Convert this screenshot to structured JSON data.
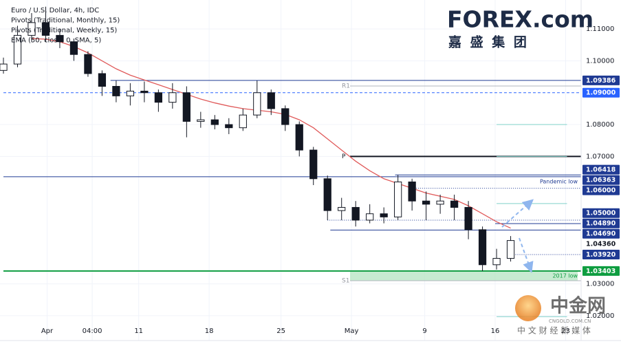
{
  "chart_data": {
    "type": "candlestick",
    "legend_lines": [
      "Euro / U.S. Dollar, 4h, IDC",
      "Pivots (Traditional, Monthly, 15)",
      "Pivots (Traditional, Weekly, 15)",
      "EMA (50, close, 0, SMA, 5)"
    ],
    "up_color": "#ffffff",
    "down_color": "#131722",
    "open": [
      1.097,
      1.099,
      1.108,
      1.112,
      1.108,
      1.106,
      1.102,
      1.096,
      1.092,
      1.089,
      1.0905,
      1.09,
      1.087,
      1.09,
      1.081,
      1.0815,
      1.08,
      1.079,
      1.083,
      1.09,
      1.085,
      1.08,
      1.072,
      1.063,
      1.053,
      1.054,
      1.05,
      1.052,
      1.051,
      1.062,
      1.056,
      1.055,
      1.056,
      1.054,
      1.047,
      1.036,
      1.038
    ],
    "high": [
      1.101,
      1.111,
      1.115,
      1.117,
      1.11,
      1.107,
      1.103,
      1.097,
      1.0938,
      1.093,
      1.0935,
      1.091,
      1.093,
      1.092,
      1.084,
      1.083,
      1.082,
      1.085,
      1.0938,
      1.091,
      1.086,
      1.081,
      1.073,
      1.064,
      1.057,
      1.056,
      1.055,
      1.054,
      1.0642,
      1.063,
      1.059,
      1.058,
      1.058,
      1.056,
      1.048,
      1.041,
      1.045
    ],
    "low": [
      1.096,
      1.098,
      1.106,
      1.106,
      1.104,
      1.1,
      1.095,
      1.089,
      1.087,
      1.086,
      1.087,
      1.084,
      1.085,
      1.076,
      1.079,
      1.0785,
      1.077,
      1.078,
      1.082,
      1.083,
      1.078,
      1.07,
      1.061,
      1.05,
      1.05,
      1.048,
      1.049,
      1.049,
      1.05,
      1.053,
      1.05,
      1.052,
      1.05,
      1.044,
      1.034,
      1.0345,
      1.037
    ],
    "close": [
      1.099,
      1.108,
      1.112,
      1.108,
      1.106,
      1.102,
      1.096,
      1.092,
      1.089,
      1.0905,
      1.09,
      1.087,
      1.09,
      1.081,
      1.0815,
      1.08,
      1.079,
      1.083,
      1.09,
      1.085,
      1.08,
      1.072,
      1.063,
      1.053,
      1.054,
      1.05,
      1.052,
      1.051,
      1.062,
      1.056,
      1.055,
      1.056,
      1.054,
      1.047,
      1.036,
      1.038,
      1.0436
    ],
    "ema": {
      "color": "#e05a5a",
      "values": [
        null,
        null,
        1.107,
        1.1068,
        1.106,
        1.1045,
        1.1025,
        1.1,
        1.0975,
        1.0955,
        1.094,
        1.0925,
        1.091,
        1.0895,
        1.088,
        1.0868,
        1.0858,
        1.085,
        1.0845,
        1.084,
        1.0832,
        1.0815,
        1.079,
        1.0755,
        1.072,
        1.0685,
        1.0655,
        1.063,
        1.0615,
        1.06,
        1.0585,
        1.0575,
        1.0565,
        1.0545,
        1.052,
        1.0495,
        1.0475
      ]
    },
    "xlim": [
      0,
      41
    ],
    "xticks": [
      {
        "value": 3.1,
        "label": "Apr"
      },
      {
        "value": 6.3,
        "label": "04:00"
      },
      {
        "value": 9.6,
        "label": "11"
      },
      {
        "value": 14.6,
        "label": "18"
      },
      {
        "value": 19.7,
        "label": "25"
      },
      {
        "value": 24.7,
        "label": "May"
      },
      {
        "value": 29.9,
        "label": "9"
      },
      {
        "value": 34.9,
        "label": "16"
      },
      {
        "value": 39.9,
        "label": "23"
      }
    ],
    "ylim": [
      1.0122,
      1.1191
    ],
    "yticks": [
      {
        "value": 1.11,
        "label": "1.11000"
      },
      {
        "value": 1.1,
        "label": "1.10000"
      },
      {
        "value": 1.08,
        "label": "1.08000"
      },
      {
        "value": 1.07,
        "label": "1.07000"
      },
      {
        "value": 1.03,
        "label": "1.03000"
      },
      {
        "value": 1.02,
        "label": "1.02000"
      }
    ],
    "grid": true,
    "levels": [
      {
        "value": 1.09386,
        "label": "1.09386",
        "color": "#1f3a93",
        "line": "solid",
        "from": 7.6
      },
      {
        "value": 1.09,
        "label": "1.09000",
        "color": "#2962ff",
        "line": "dashed",
        "from": 0
      },
      {
        "value": 1.06418,
        "label": "1.06418",
        "color": "#1f3a93",
        "line": "solid",
        "from": 27.8
      },
      {
        "value": 1.06363,
        "label": "1.06363",
        "color": "#1f3a93",
        "line": "solid",
        "from": 0
      },
      {
        "value": 1.06,
        "label": "1.06000",
        "color": "#1f3a93",
        "line": "dotted",
        "from": 29
      },
      {
        "value": 1.05,
        "label": "1.05000",
        "color": "#1f3a93",
        "line": "dotted",
        "from": 23
      },
      {
        "value": 1.0489,
        "label": "1.04890",
        "color": "#1f3a93",
        "line": "solid",
        "from": 34.9
      },
      {
        "value": 1.0469,
        "label": "1.04690",
        "color": "#1f3a93",
        "line": "solid",
        "from": 23.2
      },
      {
        "value": 1.0392,
        "label": "1.03920",
        "color": "#1f3a93",
        "line": "dotted",
        "from": 35.9
      },
      {
        "value": 1.03403,
        "label": "1.03403",
        "color": "#0e9d40",
        "line": "solid",
        "from": 0
      }
    ],
    "last_price": {
      "value": 1.0436,
      "label": "1.04360"
    },
    "pivots": [
      {
        "name": "R1",
        "value": 1.0921,
        "color": "#b2b5be",
        "from": 24.6
      },
      {
        "name": "P",
        "value": 1.07,
        "color": "#131722",
        "from": 24.6
      },
      {
        "name": "S1",
        "value": 1.031,
        "color": "#b2b5be",
        "from": 24.6
      }
    ],
    "weekly_pivots": {
      "color": "#7fd0c9",
      "from": 35,
      "values": [
        1.08,
        1.07,
        1.0552,
        1.0197
      ]
    },
    "annotations": [
      {
        "text": "Pandemic low",
        "level": 3
      },
      {
        "text": "2017 low",
        "level": 9
      }
    ]
  },
  "branding": {
    "logo": "FOREX.com",
    "logo_sub": "嘉 盛 集 团",
    "watermark": "中金网",
    "watermark_url": "CNGOLD.COM.CN",
    "watermark_sub": "中 文 财 经 新 媒 体"
  }
}
